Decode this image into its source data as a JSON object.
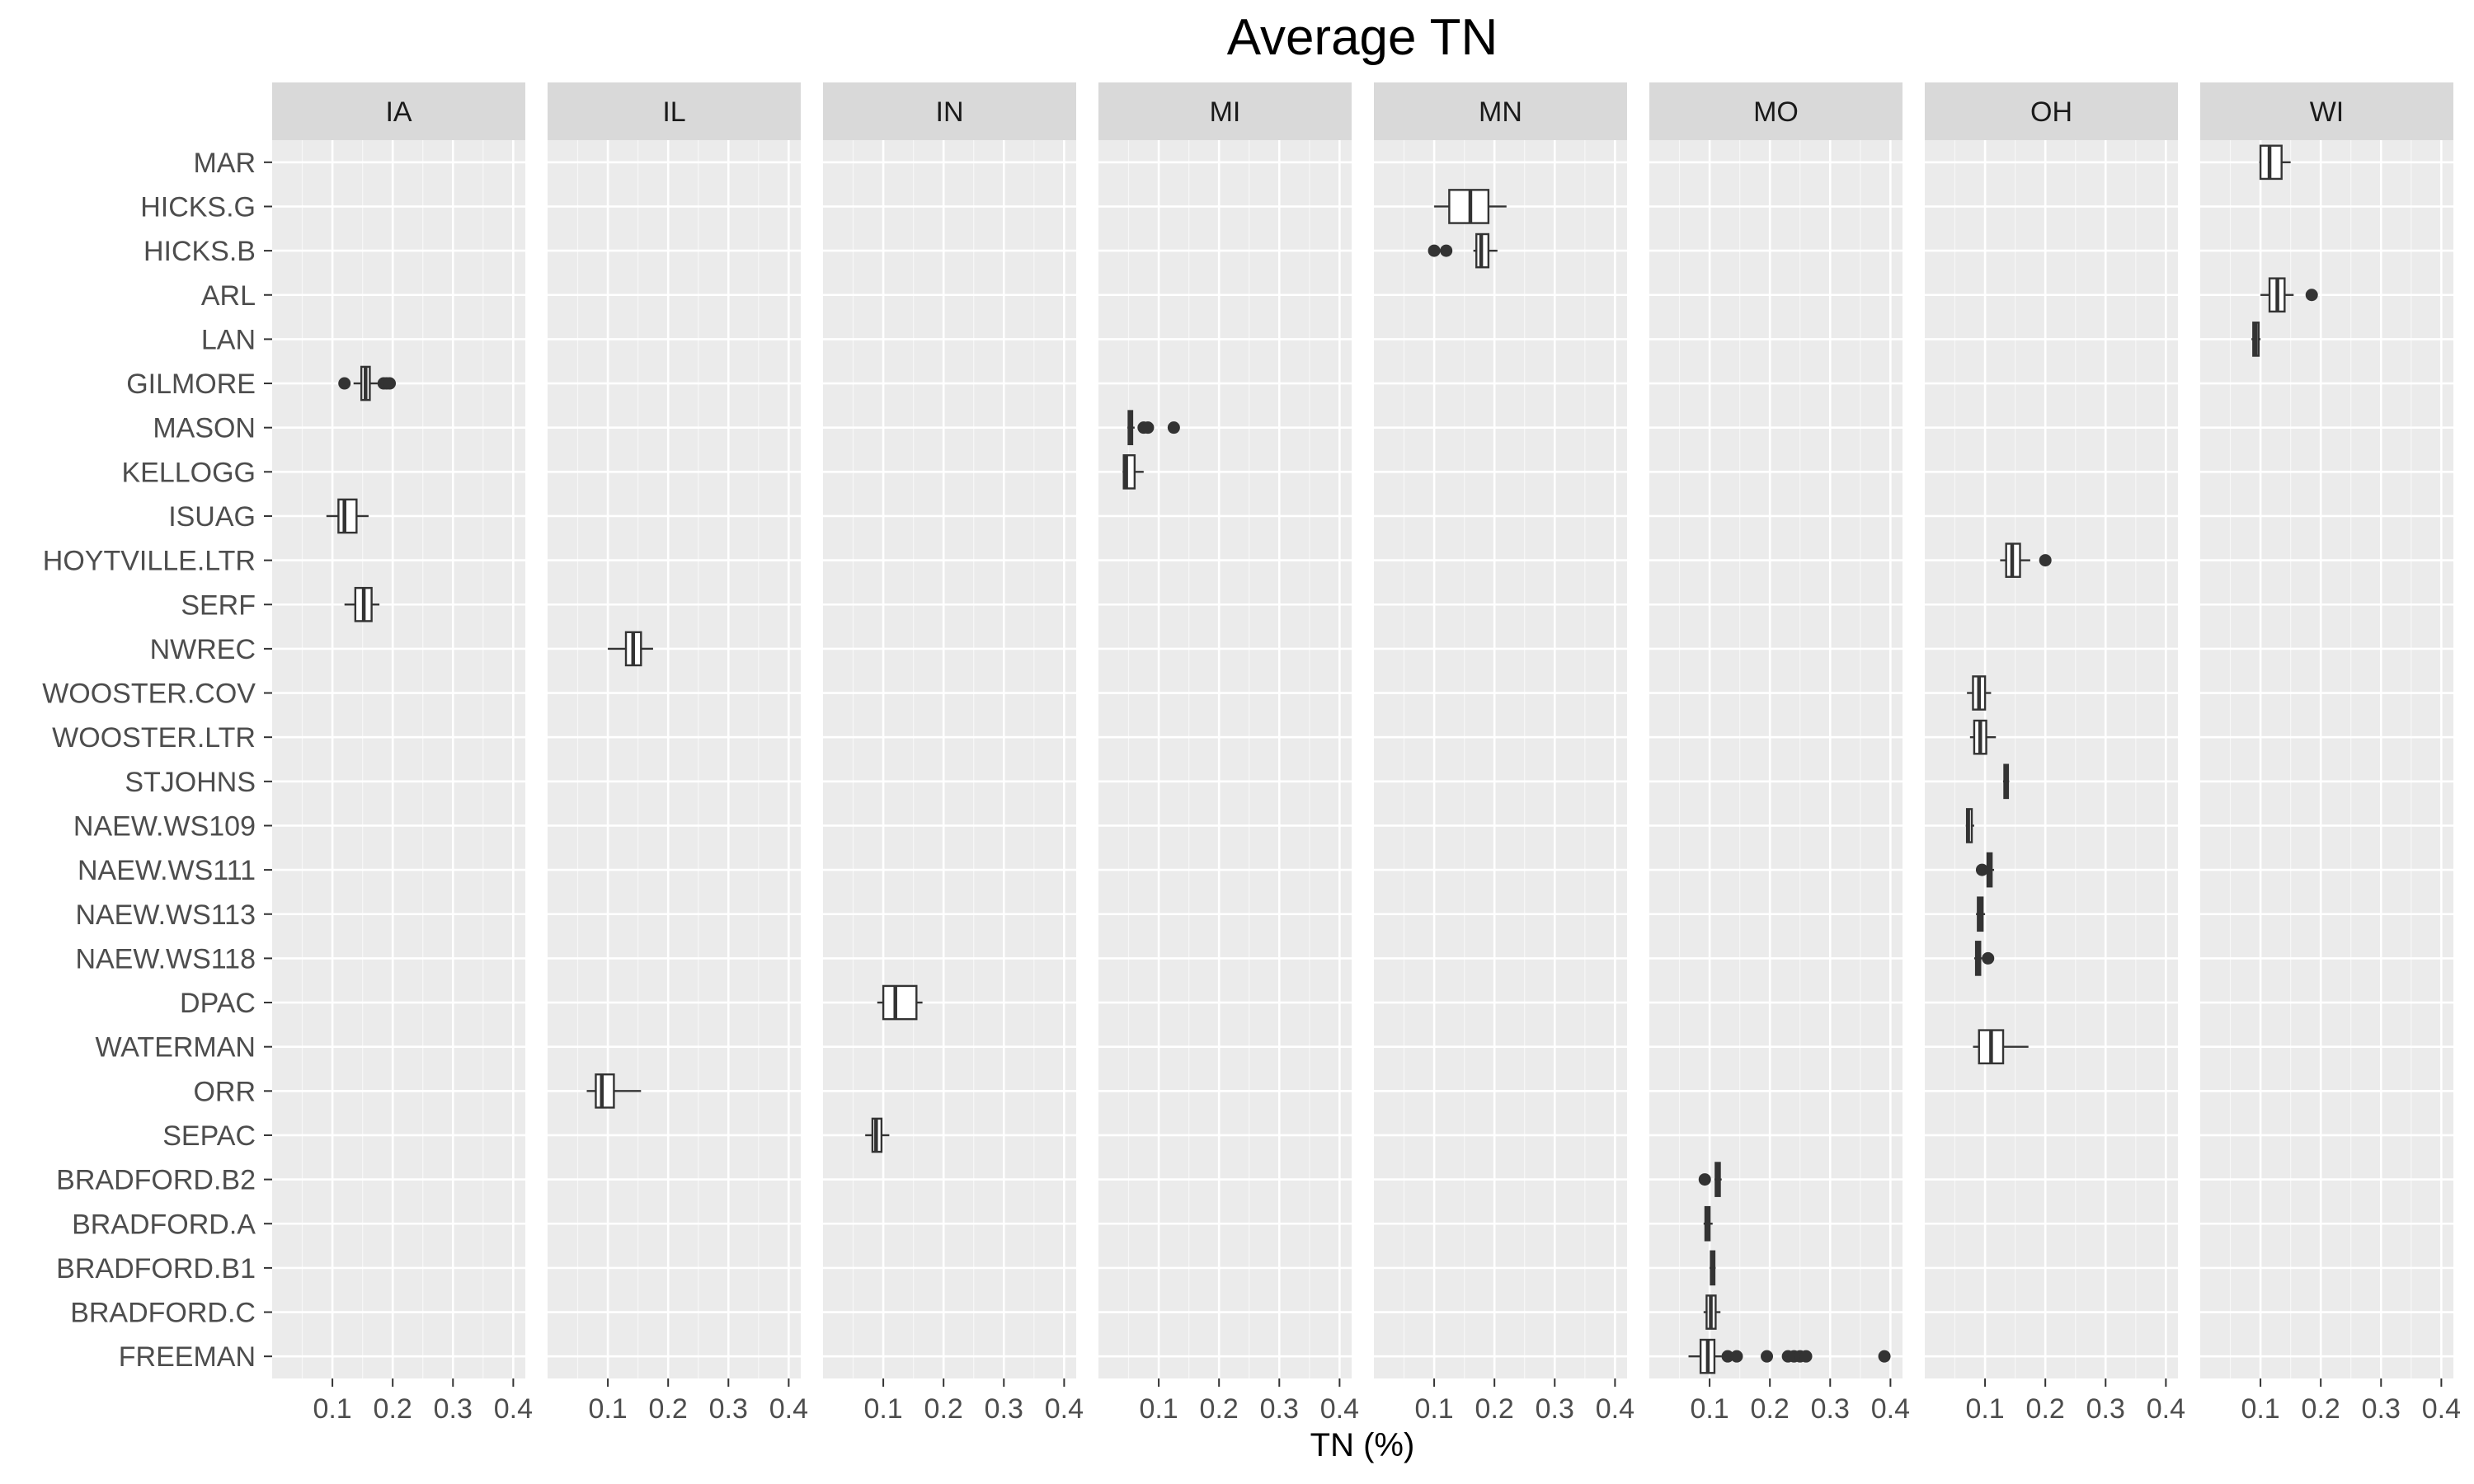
{
  "chart_data": {
    "type": "boxplot",
    "title": "Average TN",
    "xlabel": "TN (%)",
    "ylabel": "",
    "xlim": [
      0,
      0.42
    ],
    "x_ticks": [
      0.1,
      0.2,
      0.3,
      0.4
    ],
    "x_tick_labels": [
      "0.1",
      "0.2",
      "0.3",
      "0.4"
    ],
    "grid": true,
    "facets": [
      "IA",
      "IL",
      "IN",
      "MI",
      "MN",
      "MO",
      "OH",
      "WI"
    ],
    "sites": [
      "MAR",
      "HICKS.G",
      "HICKS.B",
      "ARL",
      "LAN",
      "GILMORE",
      "MASON",
      "KELLOGG",
      "ISUAG",
      "HOYTVILLE.LTR",
      "SERF",
      "NWREC",
      "WOOSTER.COV",
      "WOOSTER.LTR",
      "STJOHNS",
      "NAEW.WS109",
      "NAEW.WS111",
      "NAEW.WS113",
      "NAEW.WS118",
      "DPAC",
      "WATERMAN",
      "ORR",
      "SEPAC",
      "BRADFORD.B2",
      "BRADFORD.A",
      "BRADFORD.B1",
      "BRADFORD.C",
      "FREEMAN"
    ],
    "boxes": [
      {
        "facet": "WI",
        "site": "MAR",
        "whisker_low": 0.098,
        "q1": 0.1,
        "median": 0.115,
        "q3": 0.135,
        "whisker_high": 0.15,
        "outliers": []
      },
      {
        "facet": "MN",
        "site": "HICKS.G",
        "whisker_low": 0.1,
        "q1": 0.125,
        "median": 0.16,
        "q3": 0.19,
        "whisker_high": 0.22,
        "outliers": []
      },
      {
        "facet": "MN",
        "site": "HICKS.B",
        "whisker_low": 0.165,
        "q1": 0.17,
        "median": 0.178,
        "q3": 0.19,
        "whisker_high": 0.205,
        "outliers": [
          0.1,
          0.12
        ]
      },
      {
        "facet": "WI",
        "site": "ARL",
        "whisker_low": 0.1,
        "q1": 0.115,
        "median": 0.128,
        "q3": 0.14,
        "whisker_high": 0.155,
        "outliers": [
          0.185
        ]
      },
      {
        "facet": "WI",
        "site": "LAN",
        "whisker_low": 0.085,
        "q1": 0.088,
        "median": 0.092,
        "q3": 0.097,
        "whisker_high": 0.1,
        "outliers": []
      },
      {
        "facet": "IA",
        "site": "GILMORE",
        "whisker_low": 0.135,
        "q1": 0.148,
        "median": 0.155,
        "q3": 0.162,
        "whisker_high": 0.175,
        "outliers": [
          0.12,
          0.185,
          0.19,
          0.195
        ]
      },
      {
        "facet": "MI",
        "site": "MASON",
        "whisker_low": 0.048,
        "q1": 0.05,
        "median": 0.052,
        "q3": 0.056,
        "whisker_high": 0.06,
        "outliers": [
          0.075,
          0.082,
          0.125
        ]
      },
      {
        "facet": "MI",
        "site": "KELLOGG",
        "whisker_low": 0.04,
        "q1": 0.042,
        "median": 0.046,
        "q3": 0.06,
        "whisker_high": 0.075,
        "outliers": []
      },
      {
        "facet": "IA",
        "site": "ISUAG",
        "whisker_low": 0.09,
        "q1": 0.11,
        "median": 0.12,
        "q3": 0.14,
        "whisker_high": 0.16,
        "outliers": []
      },
      {
        "facet": "OH",
        "site": "HOYTVILLE.LTR",
        "whisker_low": 0.125,
        "q1": 0.135,
        "median": 0.145,
        "q3": 0.158,
        "whisker_high": 0.175,
        "outliers": [
          0.2
        ]
      },
      {
        "facet": "IA",
        "site": "SERF",
        "whisker_low": 0.12,
        "q1": 0.138,
        "median": 0.152,
        "q3": 0.165,
        "whisker_high": 0.178,
        "outliers": []
      },
      {
        "facet": "IL",
        "site": "NWREC",
        "whisker_low": 0.1,
        "q1": 0.13,
        "median": 0.142,
        "q3": 0.155,
        "whisker_high": 0.175,
        "outliers": []
      },
      {
        "facet": "OH",
        "site": "WOOSTER.COV",
        "whisker_low": 0.07,
        "q1": 0.08,
        "median": 0.09,
        "q3": 0.1,
        "whisker_high": 0.11,
        "outliers": []
      },
      {
        "facet": "OH",
        "site": "WOOSTER.LTR",
        "whisker_low": 0.075,
        "q1": 0.082,
        "median": 0.092,
        "q3": 0.102,
        "whisker_high": 0.118,
        "outliers": []
      },
      {
        "facet": "OH",
        "site": "STJOHNS",
        "whisker_low": 0.13,
        "q1": 0.132,
        "median": 0.135,
        "q3": 0.138,
        "whisker_high": 0.14,
        "outliers": []
      },
      {
        "facet": "OH",
        "site": "NAEW.WS109",
        "whisker_low": 0.068,
        "q1": 0.07,
        "median": 0.072,
        "q3": 0.078,
        "whisker_high": 0.082,
        "outliers": []
      },
      {
        "facet": "OH",
        "site": "NAEW.WS111",
        "whisker_low": 0.102,
        "q1": 0.104,
        "median": 0.107,
        "q3": 0.111,
        "whisker_high": 0.115,
        "outliers": [
          0.095
        ]
      },
      {
        "facet": "OH",
        "site": "NAEW.WS113",
        "whisker_low": 0.085,
        "q1": 0.088,
        "median": 0.092,
        "q3": 0.096,
        "whisker_high": 0.1,
        "outliers": []
      },
      {
        "facet": "OH",
        "site": "NAEW.WS118",
        "whisker_low": 0.082,
        "q1": 0.085,
        "median": 0.088,
        "q3": 0.092,
        "whisker_high": 0.095,
        "outliers": [
          0.105
        ]
      },
      {
        "facet": "IN",
        "site": "DPAC",
        "whisker_low": 0.09,
        "q1": 0.1,
        "median": 0.12,
        "q3": 0.155,
        "whisker_high": 0.165,
        "outliers": []
      },
      {
        "facet": "OH",
        "site": "WATERMAN",
        "whisker_low": 0.08,
        "q1": 0.09,
        "median": 0.11,
        "q3": 0.13,
        "whisker_high": 0.172,
        "outliers": []
      },
      {
        "facet": "IL",
        "site": "ORR",
        "whisker_low": 0.065,
        "q1": 0.08,
        "median": 0.09,
        "q3": 0.11,
        "whisker_high": 0.155,
        "outliers": []
      },
      {
        "facet": "IN",
        "site": "SEPAC",
        "whisker_low": 0.07,
        "q1": 0.082,
        "median": 0.088,
        "q3": 0.097,
        "whisker_high": 0.11,
        "outliers": []
      },
      {
        "facet": "MO",
        "site": "BRADFORD.B2",
        "whisker_low": 0.108,
        "q1": 0.11,
        "median": 0.113,
        "q3": 0.117,
        "whisker_high": 0.12,
        "outliers": [
          0.092
        ]
      },
      {
        "facet": "MO",
        "site": "BRADFORD.A",
        "whisker_low": 0.09,
        "q1": 0.093,
        "median": 0.096,
        "q3": 0.1,
        "whisker_high": 0.105,
        "outliers": []
      },
      {
        "facet": "MO",
        "site": "BRADFORD.B1",
        "whisker_low": 0.1,
        "q1": 0.102,
        "median": 0.105,
        "q3": 0.108,
        "whisker_high": 0.11,
        "outliers": []
      },
      {
        "facet": "MO",
        "site": "BRADFORD.C",
        "whisker_low": 0.09,
        "q1": 0.095,
        "median": 0.102,
        "q3": 0.11,
        "whisker_high": 0.118,
        "outliers": []
      },
      {
        "facet": "MO",
        "site": "FREEMAN",
        "whisker_low": 0.065,
        "q1": 0.085,
        "median": 0.097,
        "q3": 0.108,
        "whisker_high": 0.12,
        "outliers": [
          0.13,
          0.145,
          0.195,
          0.23,
          0.24,
          0.25,
          0.26,
          0.39
        ]
      }
    ]
  },
  "colors": {
    "panel_bg": "#ebebeb",
    "grid_major": "#ffffff",
    "strip_bg": "#d9d9d9",
    "box_fill": "#ffffff",
    "box_line": "#333333",
    "outlier": "#333333",
    "tick_label": "#4d4d4d"
  }
}
